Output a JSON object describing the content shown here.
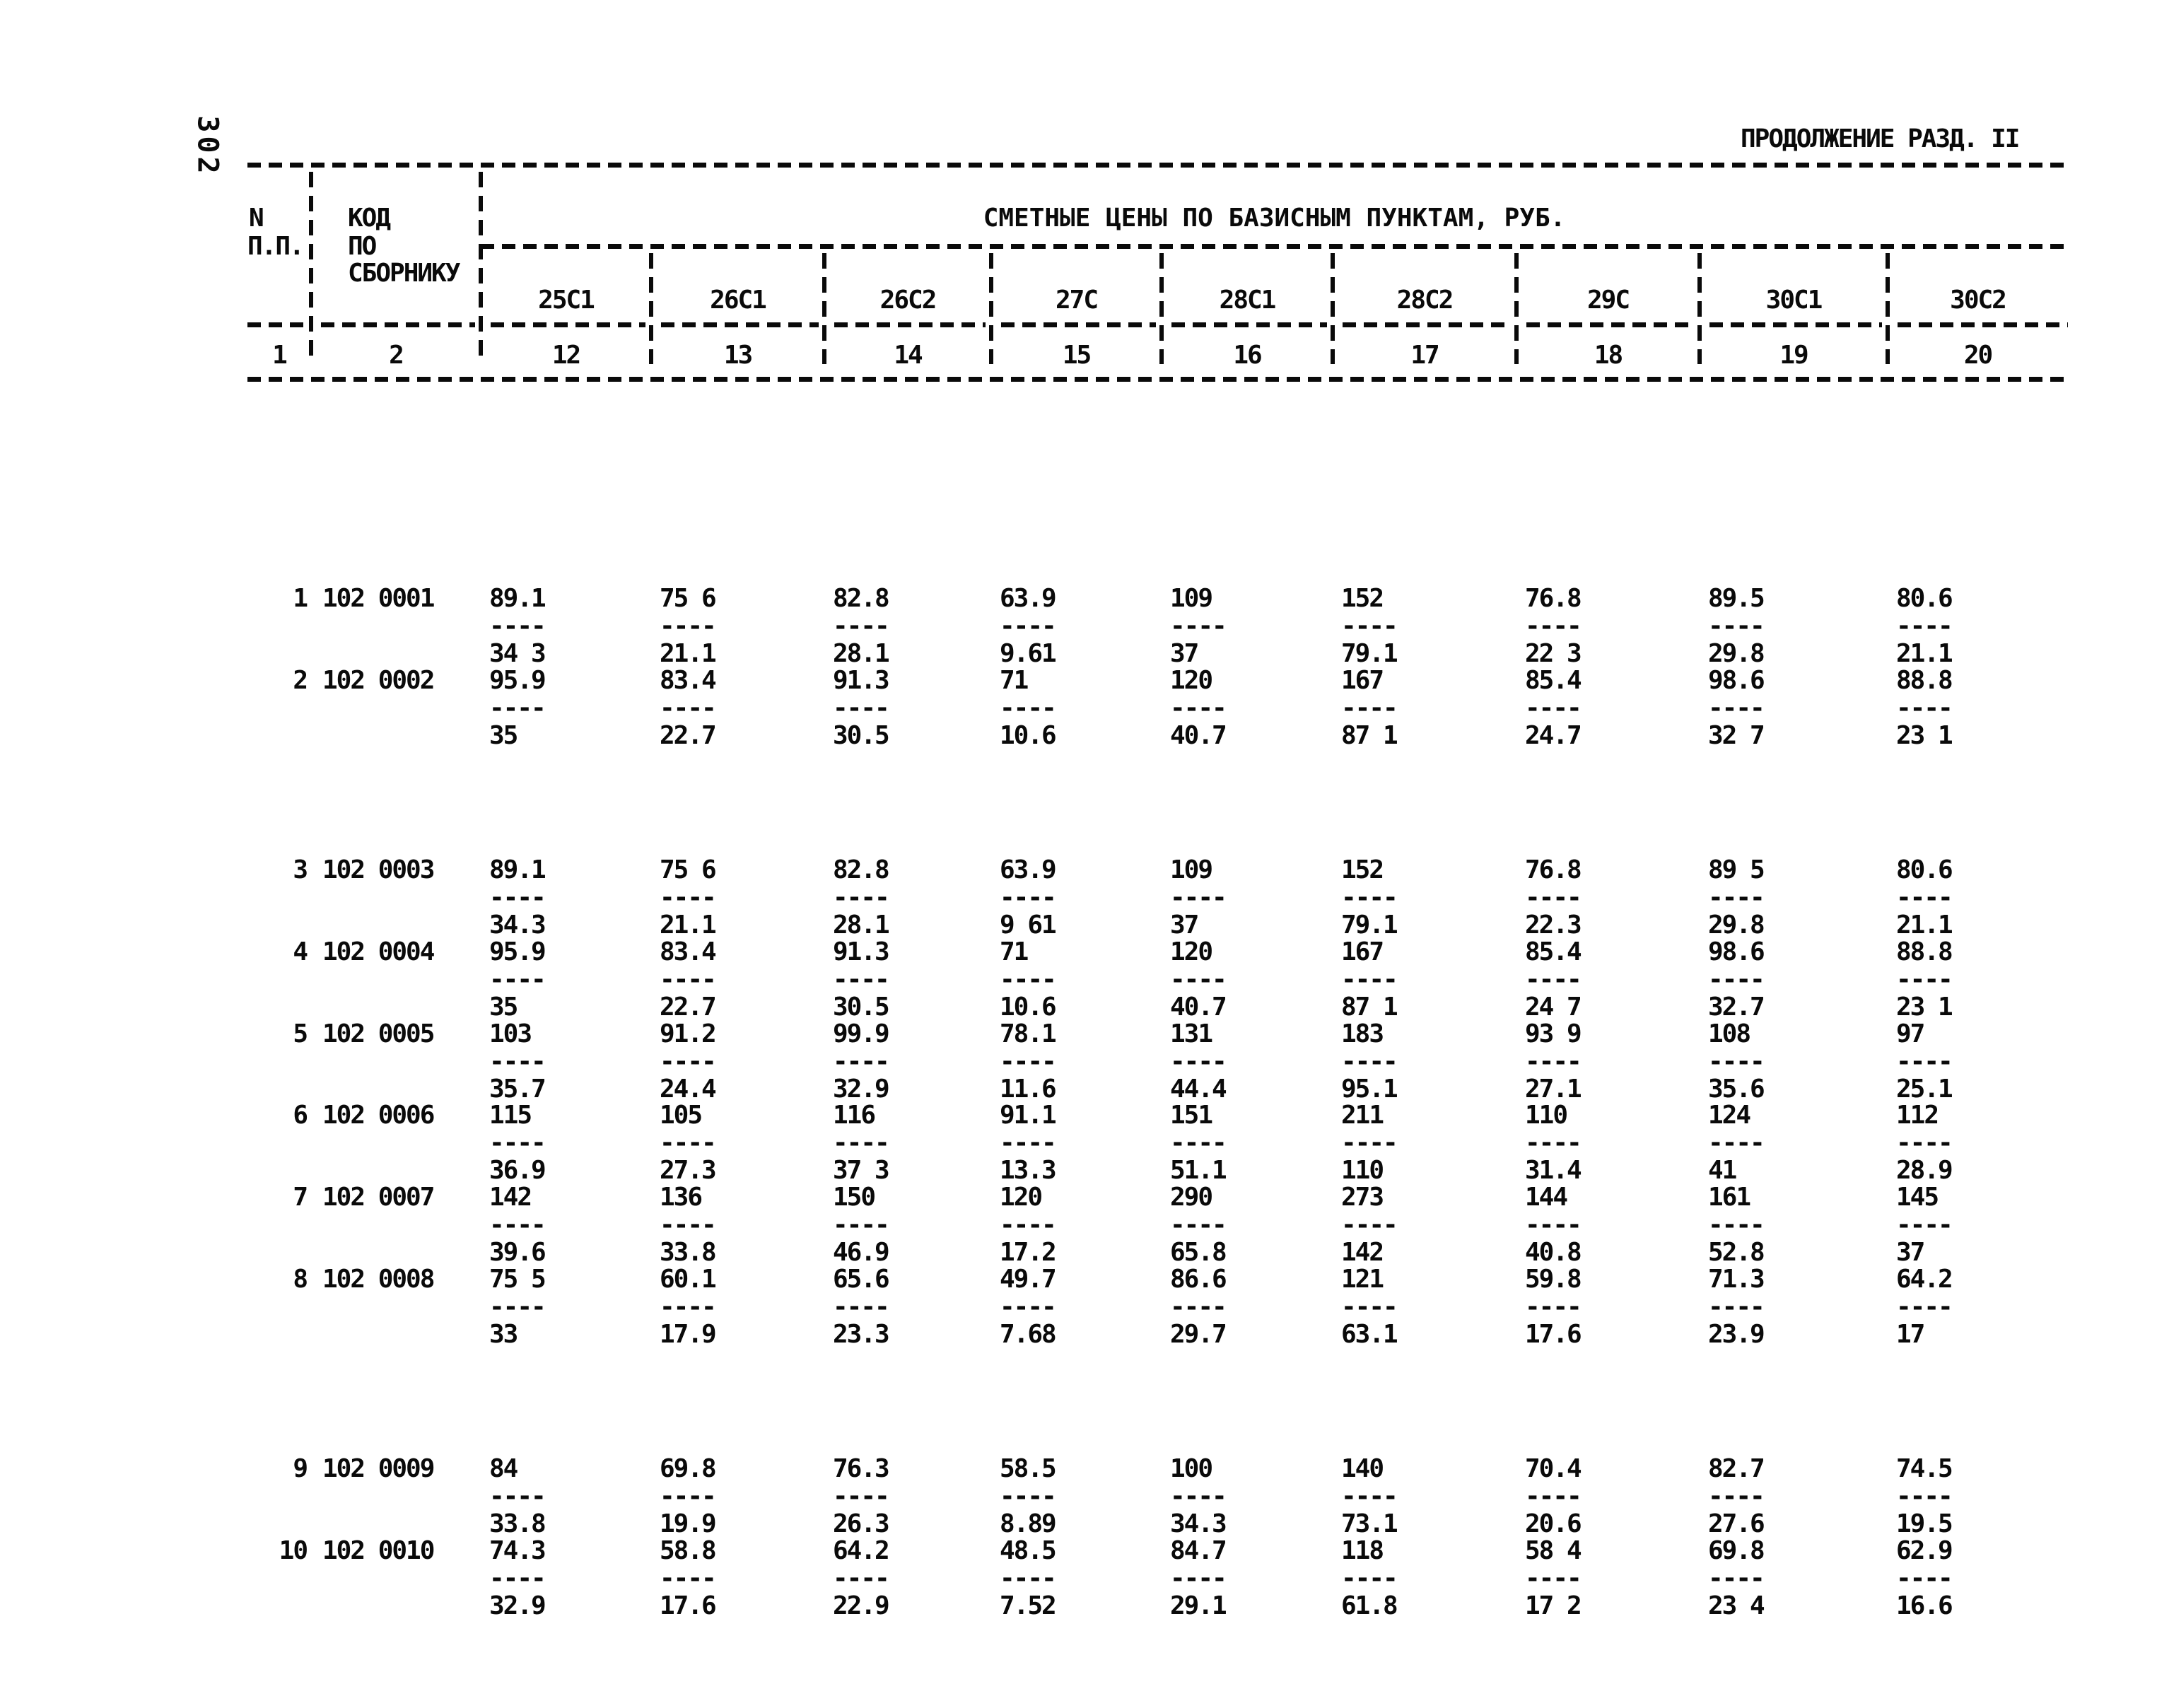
{
  "page": {
    "side_page_number": "302",
    "heading": "ПРОДОЛЖЕНИЕ РАЗД. II"
  },
  "table": {
    "col_npp": [
      "N",
      "П.П."
    ],
    "col_code": [
      "КОД",
      "ПО",
      "СБОРНИКУ"
    ],
    "prices_header": "СМЕТНЫЕ ЦЕНЫ ПО БАЗИСНЫМ ПУНКТАМ, РУБ.",
    "price_columns": [
      "25С1",
      "26С1",
      "26С2",
      "27С",
      "28С1",
      "28С2",
      "29С",
      "30С1",
      "30С2"
    ],
    "column_numbers": [
      "1",
      "2",
      "12",
      "13",
      "14",
      "15",
      "16",
      "17",
      "18",
      "19",
      "20"
    ],
    "fraction_divider": "----",
    "rows": [
      {
        "num": "1",
        "code": "102 0001",
        "cells": [
          {
            "top": "89.1",
            "bottom": "34 3"
          },
          {
            "top": "75 6",
            "bottom": "21.1"
          },
          {
            "top": "82.8",
            "bottom": "28.1"
          },
          {
            "top": "63.9",
            "bottom": "9.61"
          },
          {
            "top": "109",
            "bottom": "37"
          },
          {
            "top": "152",
            "bottom": "79.1"
          },
          {
            "top": "76.8",
            "bottom": "22 3"
          },
          {
            "top": "89.5",
            "bottom": "29.8"
          },
          {
            "top": "80.6",
            "bottom": "21.1"
          }
        ]
      },
      {
        "num": "2",
        "code": "102 0002",
        "cells": [
          {
            "top": "95.9",
            "bottom": "35"
          },
          {
            "top": "83.4",
            "bottom": "22.7"
          },
          {
            "top": "91.3",
            "bottom": "30.5"
          },
          {
            "top": "71",
            "bottom": "10.6"
          },
          {
            "top": "120",
            "bottom": "40.7"
          },
          {
            "top": "167",
            "bottom": "87 1"
          },
          {
            "top": "85.4",
            "bottom": "24.7"
          },
          {
            "top": "98.6",
            "bottom": "32 7"
          },
          {
            "top": "88.8",
            "bottom": "23 1"
          }
        ]
      },
      {
        "num": "3",
        "code": "102 0003",
        "cells": [
          {
            "top": "89.1",
            "bottom": "34.3"
          },
          {
            "top": "75 6",
            "bottom": "21.1"
          },
          {
            "top": "82.8",
            "bottom": "28.1"
          },
          {
            "top": "63.9",
            "bottom": "9 61"
          },
          {
            "top": "109",
            "bottom": "37"
          },
          {
            "top": "152",
            "bottom": "79.1"
          },
          {
            "top": "76.8",
            "bottom": "22.3"
          },
          {
            "top": "89 5",
            "bottom": "29.8"
          },
          {
            "top": "80.6",
            "bottom": "21.1"
          }
        ]
      },
      {
        "num": "4",
        "code": "102 0004",
        "cells": [
          {
            "top": "95.9",
            "bottom": "35"
          },
          {
            "top": "83.4",
            "bottom": "22.7"
          },
          {
            "top": "91.3",
            "bottom": "30.5"
          },
          {
            "top": "71",
            "bottom": "10.6"
          },
          {
            "top": "120",
            "bottom": "40.7"
          },
          {
            "top": "167",
            "bottom": "87 1"
          },
          {
            "top": "85.4",
            "bottom": "24 7"
          },
          {
            "top": "98.6",
            "bottom": "32.7"
          },
          {
            "top": "88.8",
            "bottom": "23 1"
          }
        ]
      },
      {
        "num": "5",
        "code": "102 0005",
        "cells": [
          {
            "top": "103",
            "bottom": "35.7"
          },
          {
            "top": "91.2",
            "bottom": "24.4"
          },
          {
            "top": "99.9",
            "bottom": "32.9"
          },
          {
            "top": "78.1",
            "bottom": "11.6"
          },
          {
            "top": "131",
            "bottom": "44.4"
          },
          {
            "top": "183",
            "bottom": "95.1"
          },
          {
            "top": "93 9",
            "bottom": "27.1"
          },
          {
            "top": "108",
            "bottom": "35.6"
          },
          {
            "top": "97",
            "bottom": "25.1"
          }
        ]
      },
      {
        "num": "6",
        "code": "102 0006",
        "cells": [
          {
            "top": "115",
            "bottom": "36.9"
          },
          {
            "top": "105",
            "bottom": "27.3"
          },
          {
            "top": "116",
            "bottom": "37 3"
          },
          {
            "top": "91.1",
            "bottom": "13.3"
          },
          {
            "top": "151",
            "bottom": "51.1"
          },
          {
            "top": "211",
            "bottom": "110"
          },
          {
            "top": "110",
            "bottom": "31.4"
          },
          {
            "top": "124",
            "bottom": "41"
          },
          {
            "top": "112",
            "bottom": "28.9"
          }
        ]
      },
      {
        "num": "7",
        "code": "102 0007",
        "cells": [
          {
            "top": "142",
            "bottom": "39.6"
          },
          {
            "top": "136",
            "bottom": "33.8"
          },
          {
            "top": "150",
            "bottom": "46.9"
          },
          {
            "top": "120",
            "bottom": "17.2"
          },
          {
            "top": "290",
            "bottom": "65.8"
          },
          {
            "top": "273",
            "bottom": "142"
          },
          {
            "top": "144",
            "bottom": "40.8"
          },
          {
            "top": "161",
            "bottom": "52.8"
          },
          {
            "top": "145",
            "bottom": "37"
          }
        ]
      },
      {
        "num": "8",
        "code": "102 0008",
        "cells": [
          {
            "top": "75 5",
            "bottom": "33"
          },
          {
            "top": "60.1",
            "bottom": "17.9"
          },
          {
            "top": "65.6",
            "bottom": "23.3"
          },
          {
            "top": "49.7",
            "bottom": "7.68"
          },
          {
            "top": "86.6",
            "bottom": "29.7"
          },
          {
            "top": "121",
            "bottom": "63.1"
          },
          {
            "top": "59.8",
            "bottom": "17.6"
          },
          {
            "top": "71.3",
            "bottom": "23.9"
          },
          {
            "top": "64.2",
            "bottom": "17"
          }
        ]
      },
      {
        "num": "9",
        "code": "102 0009",
        "cells": [
          {
            "top": "84",
            "bottom": "33.8"
          },
          {
            "top": "69.8",
            "bottom": "19.9"
          },
          {
            "top": "76.3",
            "bottom": "26.3"
          },
          {
            "top": "58.5",
            "bottom": "8.89"
          },
          {
            "top": "100",
            "bottom": "34.3"
          },
          {
            "top": "140",
            "bottom": "73.1"
          },
          {
            "top": "70.4",
            "bottom": "20.6"
          },
          {
            "top": "82.7",
            "bottom": "27.6"
          },
          {
            "top": "74.5",
            "bottom": "19.5"
          }
        ]
      },
      {
        "num": "10",
        "code": "102 0010",
        "cells": [
          {
            "top": "74.3",
            "bottom": "32.9"
          },
          {
            "top": "58.8",
            "bottom": "17.6"
          },
          {
            "top": "64.2",
            "bottom": "22.9"
          },
          {
            "top": "48.5",
            "bottom": "7.52"
          },
          {
            "top": "84.7",
            "bottom": "29.1"
          },
          {
            "top": "118",
            "bottom": "61.8"
          },
          {
            "top": "58 4",
            "bottom": "17 2"
          },
          {
            "top": "69.8",
            "bottom": "23 4"
          },
          {
            "top": "62.9",
            "bottom": "16.6"
          }
        ]
      }
    ]
  }
}
